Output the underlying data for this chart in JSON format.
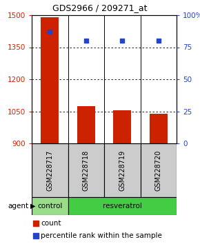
{
  "title": "GDS2966 / 209271_at",
  "samples": [
    "GSM228717",
    "GSM228718",
    "GSM228719",
    "GSM228720"
  ],
  "counts": [
    1490,
    1075,
    1055,
    1040
  ],
  "percentiles": [
    87,
    80,
    80,
    80
  ],
  "ylim_left": [
    900,
    1500
  ],
  "ylim_right": [
    0,
    100
  ],
  "yticks_left": [
    900,
    1050,
    1200,
    1350,
    1500
  ],
  "yticks_right": [
    0,
    25,
    50,
    75,
    100
  ],
  "bar_color": "#cc2200",
  "dot_color": "#2244cc",
  "group_ranges": [
    [
      0,
      0,
      "control",
      "#99dd88"
    ],
    [
      1,
      3,
      "resveratrol",
      "#44cc44"
    ]
  ],
  "group_row_label": "agent",
  "legend_count_label": "count",
  "legend_pct_label": "percentile rank within the sample",
  "sample_box_color": "#cccccc",
  "bar_width": 0.5
}
